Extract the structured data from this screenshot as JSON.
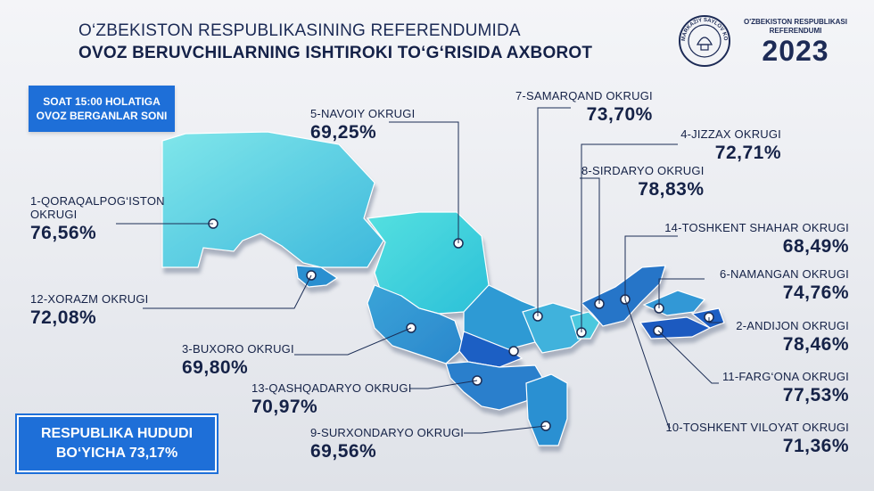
{
  "header": {
    "title_line1": "O‘ZBEKISTON RESPUBLIKASINING REFERENDUMIDA",
    "title_line2": "OVOZ BERUVCHILARNING ISHTIROKI TO‘G‘RISIDA AXBOROT"
  },
  "logos": {
    "seal_text": "MARKAZIY SAYLOV KOMISSIYASI",
    "ref_line1": "O'ZBEKISTON RESPUBLIKASI",
    "ref_line2": "REFERENDUMI",
    "ref_year": "2023"
  },
  "time_box": {
    "line1": "SOAT 15:00 HOLATIGA",
    "line2": "OVOZ BERGANLAR SONI"
  },
  "total": {
    "line1": "RESPUBLIKA HUDUDI",
    "line2": "BO‘YICHA 73,17%"
  },
  "regions": [
    {
      "name": "1-QORAQALPOG‘ISTON",
      "name2": "OKRUGI",
      "pct": "76,56%"
    },
    {
      "name": "5-NAVOIY OKRUGI",
      "pct": "69,25%"
    },
    {
      "name": "7-SAMARQAND OKRUGI",
      "pct": "73,70%"
    },
    {
      "name": "4-JIZZAX OKRUGI",
      "pct": "72,71%"
    },
    {
      "name": "8-SIRDARYO OKRUGI",
      "pct": "78,83%"
    },
    {
      "name": "14-TOSHKENT SHAHAR OKRUGI",
      "pct": "68,49%"
    },
    {
      "name": "6-NAMANGAN OKRUGI",
      "pct": "74,76%"
    },
    {
      "name": "2-ANDIJON OKRUGI",
      "pct": "78,46%"
    },
    {
      "name": "11-FARG‘ONA OKRUGI",
      "pct": "77,53%"
    },
    {
      "name": "10-TOSHKENT VILOYAT OKRUGI",
      "pct": "71,36%"
    },
    {
      "name": "12-XORAZM OKRUGI",
      "pct": "72,08%"
    },
    {
      "name": "3-BUXORO OKRUGI",
      "pct": "69,80%"
    },
    {
      "name": "13-QASHQADARYO OKRUGI",
      "pct": "70,97%"
    },
    {
      "name": "9-SURXONDARYO OKRUGI",
      "pct": "69,56%"
    }
  ],
  "colors": {
    "accent_box": "#1e6fd8",
    "text_dark": "#152247",
    "map_light": "#4fd6e0",
    "map_mid": "#2fa3d6",
    "map_dark": "#1f5fc4"
  }
}
